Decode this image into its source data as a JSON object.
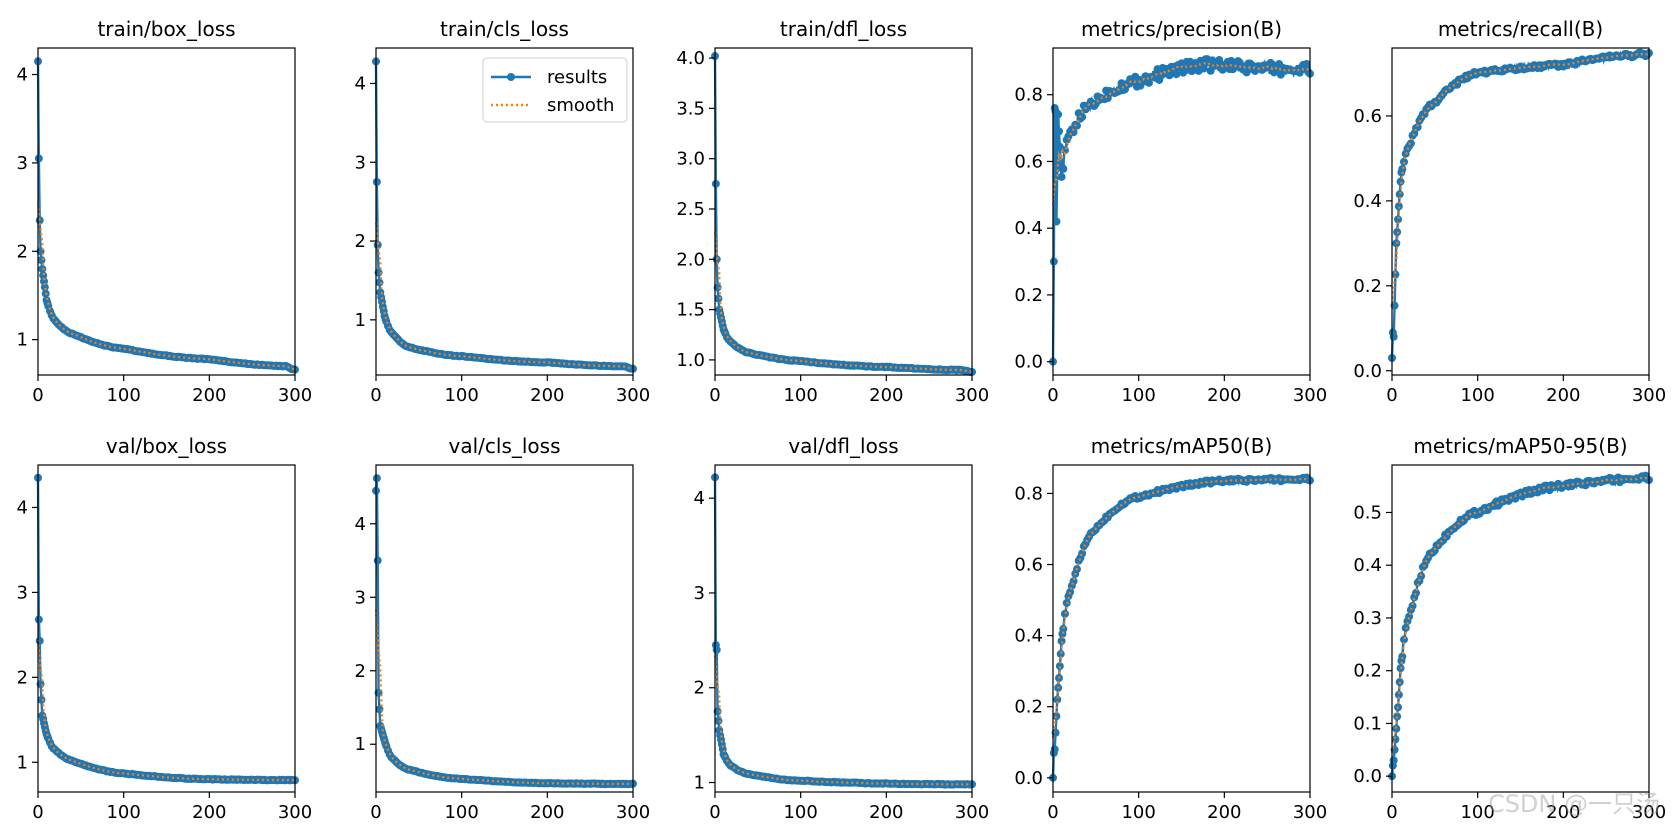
{
  "colors": {
    "results": "#1f77b4",
    "smooth": "#ff7f0e",
    "axis": "#000000"
  },
  "legend": {
    "results_label": "results",
    "smooth_label": "smooth",
    "location": "upper-right of train/cls_loss"
  },
  "watermark": "CSDN @一只汤",
  "chart_data": [
    {
      "type": "line",
      "title": "train/box_loss",
      "xlim": [
        0,
        300
      ],
      "ylim": [
        0.6,
        4.3
      ],
      "xticks": [
        0,
        100,
        200,
        300
      ],
      "yticks": [
        1,
        2,
        3,
        4
      ],
      "curve": {
        "kind": "decay",
        "y0": 4.15,
        "y1": 3.05,
        "y2": 2.35,
        "y3": 2.0,
        "y5": 1.8,
        "y10": 1.45,
        "y20": 1.22,
        "y40": 1.07,
        "y100": 0.9,
        "y200": 0.78,
        "y290": 0.7,
        "y300": 0.66
      }
    },
    {
      "type": "line",
      "title": "train/cls_loss",
      "xlim": [
        0,
        300
      ],
      "ylim": [
        0.3,
        4.45
      ],
      "xticks": [
        0,
        100,
        200,
        300
      ],
      "yticks": [
        1,
        2,
        3,
        4
      ],
      "legend": true,
      "curve": {
        "kind": "decay",
        "y0": 4.28,
        "y1": 2.75,
        "y2": 1.95,
        "y3": 1.6,
        "y5": 1.35,
        "y10": 1.05,
        "y20": 0.82,
        "y40": 0.65,
        "y100": 0.54,
        "y200": 0.46,
        "y290": 0.41,
        "y300": 0.38
      }
    },
    {
      "type": "line",
      "title": "train/dfl_loss",
      "xlim": [
        0,
        300
      ],
      "ylim": [
        0.85,
        4.1
      ],
      "xticks": [
        0,
        100,
        200,
        300
      ],
      "yticks": [
        1.0,
        1.5,
        2.0,
        2.5,
        3.0,
        3.5,
        4.0
      ],
      "curve": {
        "kind": "decay",
        "y0": 4.02,
        "y1": 2.75,
        "y2": 2.0,
        "y3": 1.72,
        "y5": 1.5,
        "y10": 1.3,
        "y20": 1.17,
        "y40": 1.07,
        "y100": 0.99,
        "y200": 0.93,
        "y290": 0.9,
        "y300": 0.88
      }
    },
    {
      "type": "line",
      "title": "metrics/precision(B)",
      "xlim": [
        0,
        300
      ],
      "ylim": [
        -0.04,
        0.94
      ],
      "xticks": [
        0,
        100,
        200,
        300
      ],
      "yticks": [
        0.0,
        0.2,
        0.4,
        0.6,
        0.8
      ],
      "curve": {
        "kind": "precision",
        "y0": 0.0,
        "y1": 0.3,
        "y2": 0.76,
        "y3": 0.75,
        "y4": 0.42,
        "y6": 0.74,
        "y10": 0.55,
        "y20": 0.68,
        "y50": 0.78,
        "y100": 0.84,
        "y180": 0.89,
        "y300": 0.875
      }
    },
    {
      "type": "line",
      "title": "metrics/recall(B)",
      "xlim": [
        0,
        300
      ],
      "ylim": [
        -0.01,
        0.76
      ],
      "xticks": [
        0,
        100,
        200,
        300
      ],
      "yticks": [
        0.0,
        0.2,
        0.4,
        0.6
      ],
      "curve": {
        "kind": "rise",
        "y0": 0.03,
        "y1": 0.09,
        "y2": 0.08,
        "y5": 0.3,
        "y10": 0.45,
        "y20": 0.53,
        "y50": 0.63,
        "y100": 0.7,
        "y200": 0.72,
        "y300": 0.745
      }
    },
    {
      "type": "line",
      "title": "val/box_loss",
      "xlim": [
        0,
        300
      ],
      "ylim": [
        0.65,
        4.5
      ],
      "xticks": [
        0,
        100,
        200,
        300
      ],
      "yticks": [
        1,
        2,
        3,
        4
      ],
      "curve": {
        "kind": "decay",
        "y0": 4.35,
        "y1": 2.68,
        "y2": 2.43,
        "y3": 1.92,
        "y5": 1.55,
        "y10": 1.33,
        "y20": 1.15,
        "y40": 1.02,
        "y100": 0.87,
        "y200": 0.8,
        "y290": 0.79,
        "y300": 0.79
      }
    },
    {
      "type": "line",
      "title": "val/cls_loss",
      "xlim": [
        0,
        300
      ],
      "ylim": [
        0.35,
        4.8
      ],
      "xticks": [
        0,
        100,
        200,
        300
      ],
      "yticks": [
        1,
        2,
        3,
        4
      ],
      "curve": {
        "kind": "decay",
        "y0": 4.45,
        "y1": 4.62,
        "y2": 3.5,
        "y3": 1.7,
        "y5": 1.25,
        "y10": 1.05,
        "y20": 0.8,
        "y40": 0.65,
        "y100": 0.53,
        "y200": 0.47,
        "y290": 0.46,
        "y300": 0.46
      }
    },
    {
      "type": "line",
      "title": "val/dfl_loss",
      "xlim": [
        0,
        300
      ],
      "ylim": [
        0.9,
        4.35
      ],
      "xticks": [
        0,
        100,
        200,
        300
      ],
      "yticks": [
        1,
        2,
        3,
        4
      ],
      "curve": {
        "kind": "decay",
        "y0": 4.22,
        "y1": 2.45,
        "y2": 2.4,
        "y3": 1.75,
        "y5": 1.55,
        "y10": 1.3,
        "y20": 1.17,
        "y40": 1.09,
        "y100": 1.02,
        "y200": 0.99,
        "y290": 0.98,
        "y300": 0.98
      }
    },
    {
      "type": "line",
      "title": "metrics/mAP50(B)",
      "xlim": [
        0,
        300
      ],
      "ylim": [
        -0.04,
        0.88
      ],
      "xticks": [
        0,
        100,
        200,
        300
      ],
      "yticks": [
        0.0,
        0.2,
        0.4,
        0.6,
        0.8
      ],
      "curve": {
        "kind": "rise",
        "y0": 0.0,
        "y1": 0.07,
        "y2": 0.08,
        "y5": 0.22,
        "y10": 0.38,
        "y20": 0.52,
        "y50": 0.7,
        "y100": 0.79,
        "y200": 0.835,
        "y300": 0.84
      }
    },
    {
      "type": "line",
      "title": "metrics/mAP50-95(B)",
      "xlim": [
        0,
        300
      ],
      "ylim": [
        -0.03,
        0.59
      ],
      "xticks": [
        0,
        100,
        200,
        300
      ],
      "yticks": [
        0.0,
        0.1,
        0.2,
        0.3,
        0.4,
        0.5
      ],
      "curve": {
        "kind": "rise",
        "y0": 0.0,
        "y1": 0.02,
        "y2": 0.03,
        "y5": 0.09,
        "y10": 0.2,
        "y20": 0.3,
        "y50": 0.43,
        "y100": 0.5,
        "y200": 0.55,
        "y300": 0.565
      }
    }
  ]
}
